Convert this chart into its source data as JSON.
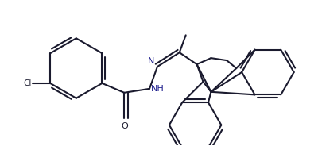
{
  "bg_color": "#ffffff",
  "line_color": "#1a1a2e",
  "line_width": 1.5,
  "figsize": [
    4.05,
    1.84
  ],
  "dpi": 100,
  "xlim": [
    0,
    405
  ],
  "ylim": [
    0,
    184
  ]
}
